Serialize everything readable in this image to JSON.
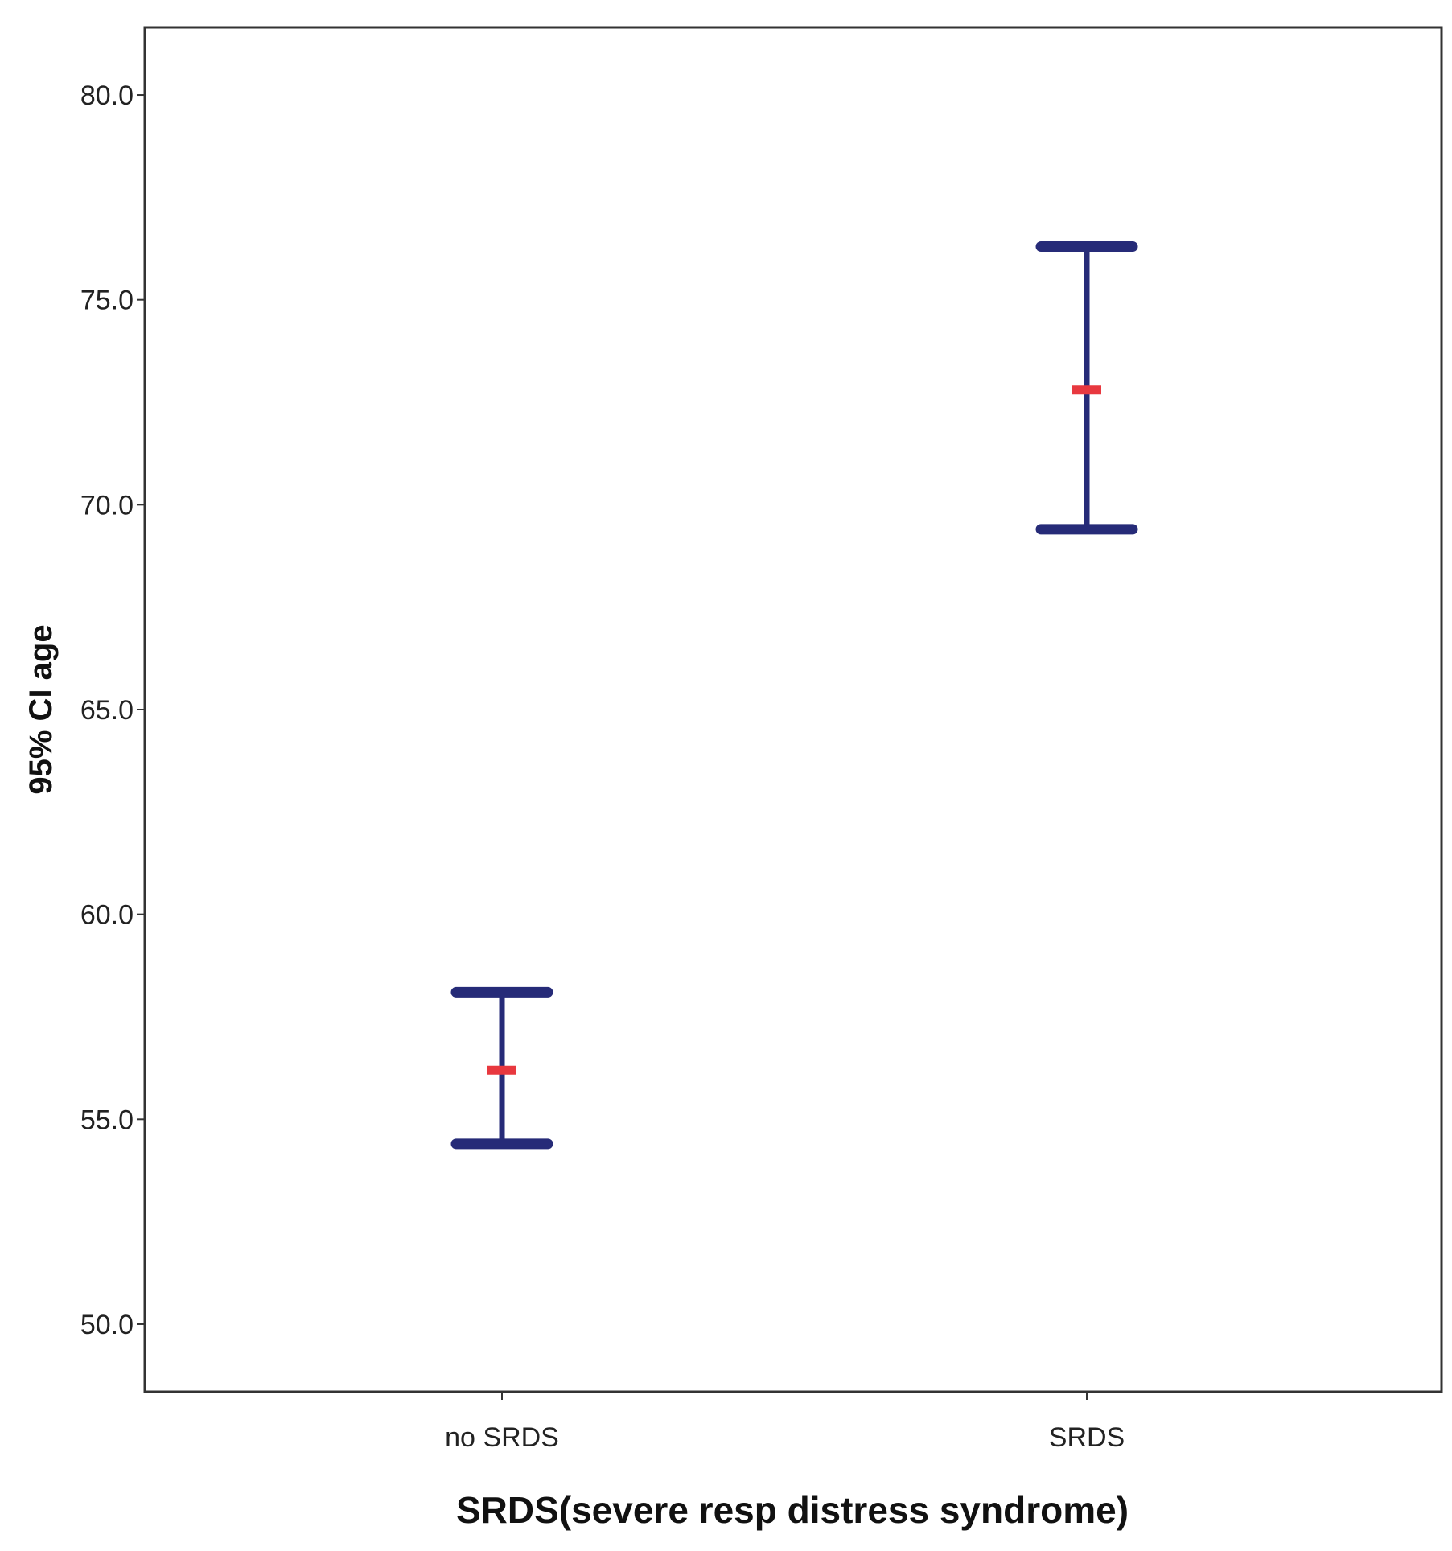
{
  "chart_data": {
    "type": "errorbar",
    "title": "",
    "xlabel": "SRDS(severe resp distress syndrome)",
    "ylabel": "95% CI age",
    "categories": [
      "no SRDS",
      "SRDS"
    ],
    "series": [
      {
        "means": [
          56.2,
          72.8
        ],
        "lower": [
          54.4,
          69.4
        ],
        "upper": [
          58.1,
          76.3
        ]
      }
    ],
    "ylim": [
      48.35,
      81.65
    ],
    "yticks": [
      50.0,
      55.0,
      60.0,
      65.0,
      70.0,
      75.0,
      80.0
    ],
    "ytick_labels": [
      "50.0",
      "55.0",
      "60.0",
      "65.0",
      "70.0",
      "75.0",
      "80.0"
    ],
    "grid": false,
    "colors": {
      "error_bar": "#262b78",
      "mean_marker": "#e8383f",
      "axis": "#333333"
    }
  }
}
